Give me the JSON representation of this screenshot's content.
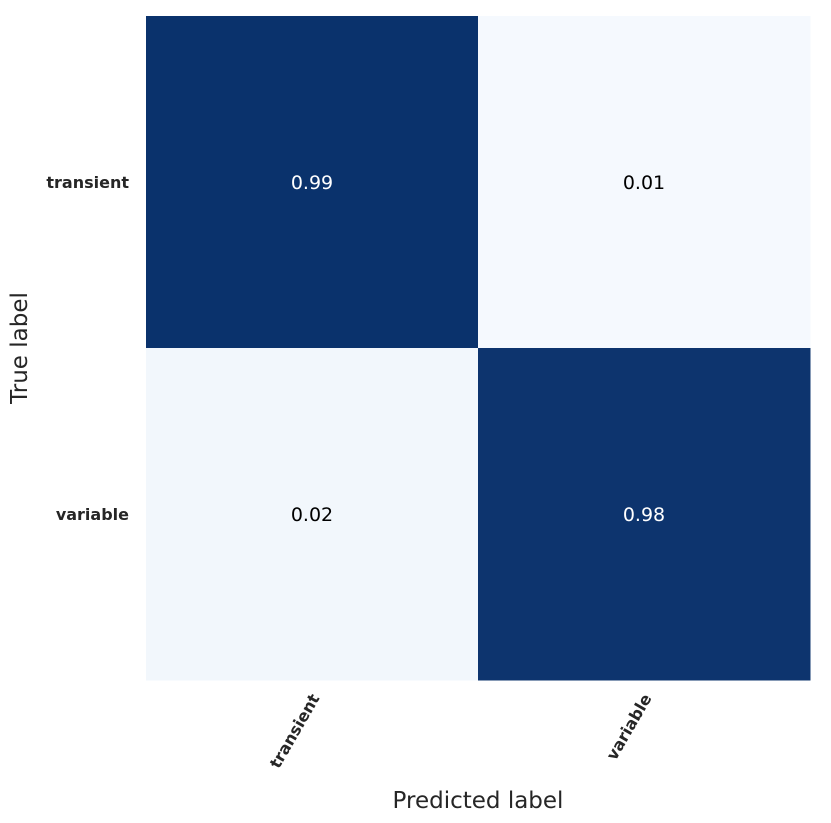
{
  "chart_data": {
    "type": "heatmap",
    "title": "",
    "xlabel": "Predicted label",
    "ylabel": "True label",
    "x_categories": [
      "transient",
      "variable"
    ],
    "y_categories": [
      "transient",
      "variable"
    ],
    "values": [
      [
        0.99,
        0.01
      ],
      [
        0.02,
        0.98
      ]
    ],
    "value_labels": [
      [
        "0.99",
        "0.01"
      ],
      [
        "0.02",
        "0.98"
      ]
    ],
    "colormap": "Blues",
    "color_low": "#f7fbff",
    "color_high": "#08306b",
    "text_color_dark_cell": "#ffffff",
    "text_color_light_cell": "#000000",
    "vmin": 0,
    "vmax": 1,
    "colorbar": false,
    "grid": false
  }
}
